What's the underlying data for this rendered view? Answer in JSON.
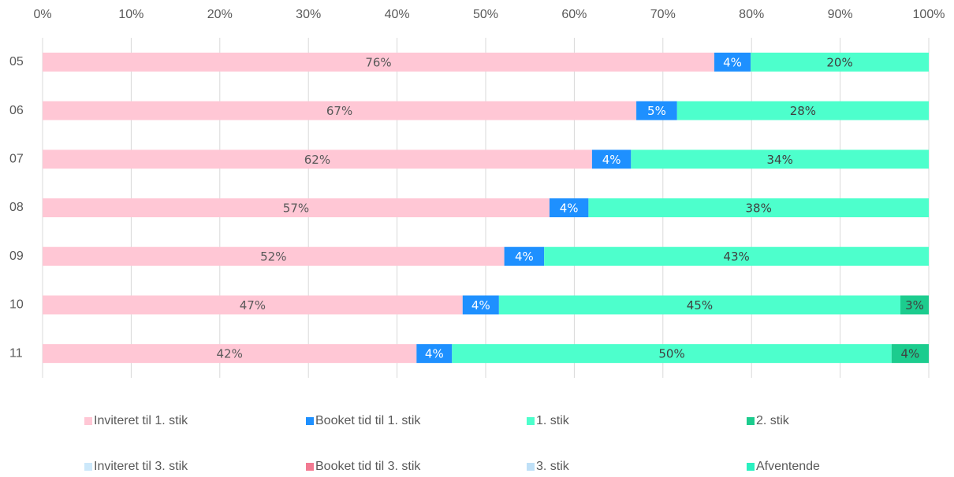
{
  "chart_data": {
    "type": "stacked-bar-horizontal",
    "categories": [
      "05",
      "06",
      "07",
      "08",
      "09",
      "10",
      "11"
    ],
    "xlim": [
      0,
      100
    ],
    "xticks": [
      {
        "value": 0,
        "label": "0%"
      },
      {
        "value": 10,
        "label": "10%"
      },
      {
        "value": 20,
        "label": "20%"
      },
      {
        "value": 30,
        "label": "30%"
      },
      {
        "value": 40,
        "label": "40%"
      },
      {
        "value": 50,
        "label": "50%"
      },
      {
        "value": 60,
        "label": "60%"
      },
      {
        "value": 70,
        "label": "70%"
      },
      {
        "value": 80,
        "label": "80%"
      },
      {
        "value": 90,
        "label": "90%"
      },
      {
        "value": 100,
        "label": "100%"
      }
    ],
    "grid": true,
    "legend": "bottom",
    "series": [
      {
        "name": "Inviteret til 1. stik",
        "color": "#ffc7d5",
        "values": [
          75.8,
          67.0,
          62.0,
          57.2,
          52.1,
          47.4,
          42.2
        ],
        "value_labels": [
          "76%",
          "67%",
          "62%",
          "57%",
          "52%",
          "47%",
          "42%"
        ]
      },
      {
        "name": "Booket tid til 1. stik",
        "color": "#1e90ff",
        "values": [
          4.1,
          4.6,
          4.4,
          4.4,
          4.5,
          4.1,
          4.0
        ],
        "value_labels": [
          "4%",
          "5%",
          "4%",
          "4%",
          "4%",
          "4%",
          "4%"
        ]
      },
      {
        "name": "1. stik",
        "color": "#4dffcc",
        "values": [
          20.1,
          28.4,
          33.6,
          38.4,
          43.4,
          45.3,
          49.6
        ],
        "value_labels": [
          "20%",
          "28%",
          "34%",
          "38%",
          "43%",
          "45%",
          "50%"
        ]
      },
      {
        "name": "2. stik",
        "color": "#1ccc8e",
        "values": [
          null,
          null,
          null,
          null,
          null,
          3.2,
          4.2
        ],
        "value_labels": [
          null,
          null,
          null,
          null,
          null,
          "3%",
          "4%"
        ]
      },
      {
        "name": "Inviteret til 3. stik",
        "color": "#cce8fa",
        "values": [
          null,
          null,
          null,
          null,
          null,
          null,
          null
        ]
      },
      {
        "name": "Booket tid til 3. stik",
        "color": "#f27a92",
        "values": [
          null,
          null,
          null,
          null,
          null,
          null,
          null
        ]
      },
      {
        "name": "3. stik",
        "color": "#bfe0f7",
        "values": [
          null,
          null,
          null,
          null,
          null,
          null,
          null
        ]
      },
      {
        "name": "Afventende",
        "color": "#2af0c0",
        "values": [
          null,
          null,
          null,
          null,
          null,
          null,
          null
        ]
      }
    ]
  }
}
